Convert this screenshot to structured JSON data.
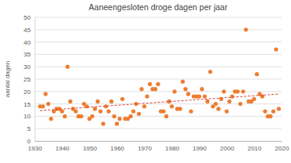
{
  "chart_data": {
    "type": "scatter",
    "title": "Aaneengesloten droge dagen per jaar",
    "y_label": "aantal dagen",
    "xlim": [
      1930,
      2020
    ],
    "xticks": [
      1930,
      1940,
      1950,
      1960,
      1970,
      1980,
      1990,
      2000,
      2010,
      2020
    ],
    "ylim": [
      0,
      50
    ],
    "yticks": [
      0,
      5,
      10,
      15,
      20,
      25,
      30,
      35,
      40,
      45,
      50
    ],
    "grid": true,
    "series": [
      {
        "type": "scatter",
        "marker": "circle",
        "color": "#ed7d31",
        "x": [
          1932,
          1933,
          1934,
          1935,
          1936,
          1937,
          1938,
          1939,
          1940,
          1941,
          1942,
          1943,
          1944,
          1945,
          1946,
          1947,
          1948,
          1949,
          1950,
          1951,
          1952,
          1953,
          1954,
          1955,
          1956,
          1957,
          1958,
          1959,
          1960,
          1961,
          1962,
          1963,
          1964,
          1965,
          1966,
          1967,
          1968,
          1969,
          1970,
          1971,
          1972,
          1973,
          1974,
          1975,
          1976,
          1977,
          1978,
          1979,
          1980,
          1981,
          1982,
          1983,
          1984,
          1985,
          1986,
          1987,
          1988,
          1989,
          1990,
          1991,
          1992,
          1993,
          1994,
          1995,
          1996,
          1997,
          1998,
          1999,
          2000,
          2001,
          2002,
          2003,
          2004,
          2005,
          2006,
          2007,
          2008,
          2009,
          2010,
          2011,
          2012,
          2013,
          2014,
          2015,
          2016,
          2017,
          2018,
          2019
        ],
        "values": [
          14,
          14,
          19,
          15,
          9,
          12,
          13,
          13,
          12,
          10,
          30,
          16,
          13,
          12,
          10,
          10,
          15,
          14,
          9,
          10,
          13,
          16,
          12,
          7,
          14,
          12,
          16,
          10,
          7,
          9,
          17,
          9,
          9,
          10,
          12,
          15,
          11,
          21,
          14,
          18,
          23,
          21,
          21,
          23,
          12,
          12,
          10,
          16,
          14,
          20,
          13,
          13,
          24,
          21,
          19,
          12,
          18,
          18,
          18,
          21,
          18,
          16,
          28,
          14,
          15,
          13,
          17,
          20,
          12,
          16,
          18,
          20,
          20,
          15,
          20,
          45,
          16,
          16,
          17,
          27,
          19,
          18,
          12,
          10,
          10,
          12,
          37,
          13
        ]
      },
      {
        "type": "line",
        "line_style": "dashed",
        "color": "#e0403a",
        "x": [
          1932,
          2019
        ],
        "values": [
          12.3,
          19
        ]
      }
    ]
  }
}
